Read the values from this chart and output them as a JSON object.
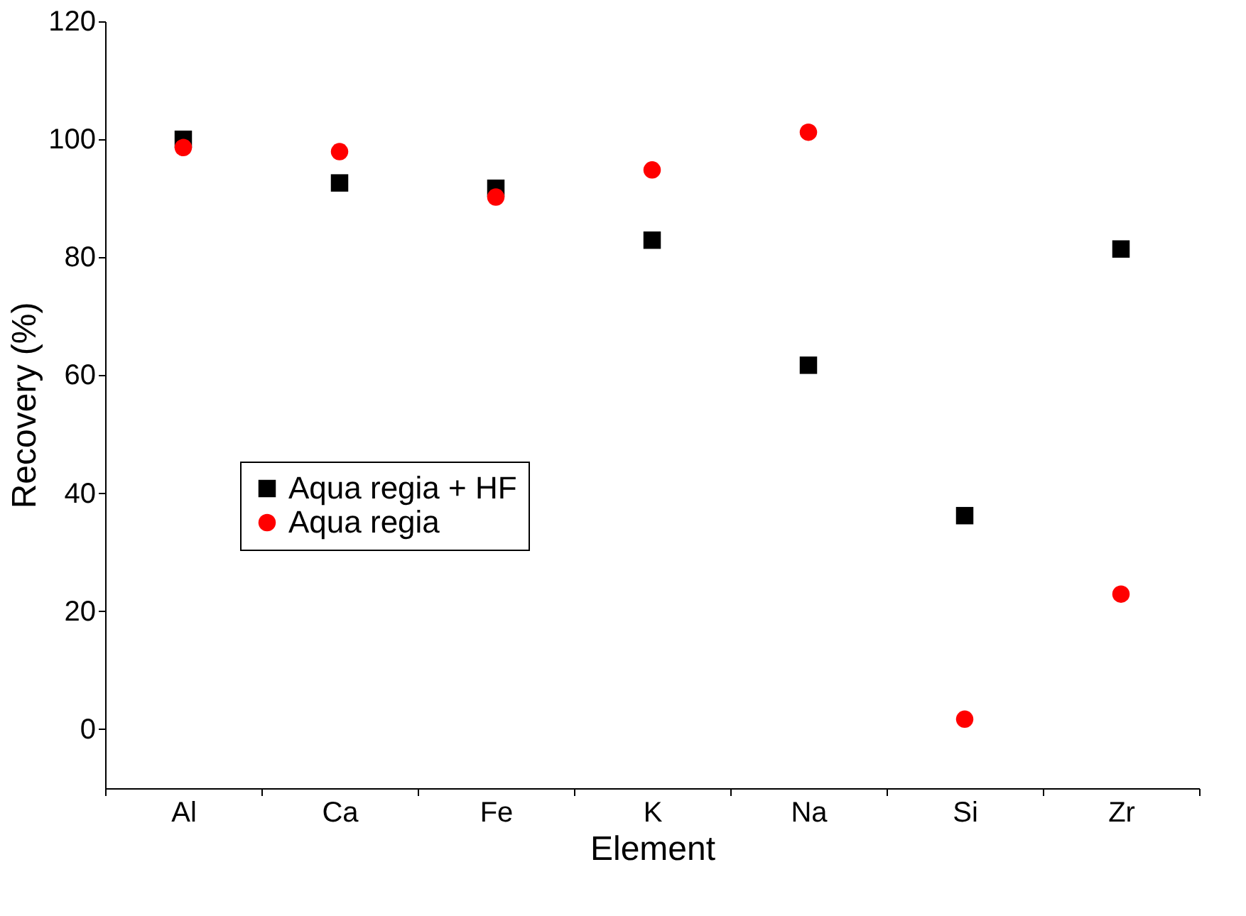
{
  "chart_data": {
    "type": "scatter",
    "xlabel": "Element",
    "ylabel": "Recovery (%)",
    "categories": [
      "Al",
      "Ca",
      "Fe",
      "K",
      "Na",
      "Si",
      "Zr"
    ],
    "series": [
      {
        "name": "Aqua regia + HF",
        "color": "#000000",
        "marker": "square",
        "values": [
          100,
          92.6,
          91.7,
          82.9,
          61.7,
          36.2,
          81.4
        ]
      },
      {
        "name": "Aqua regia",
        "color": "#ff0000",
        "marker": "circle",
        "values": [
          98.6,
          97.9,
          90.2,
          94.8,
          101.2,
          1.7,
          22.9
        ]
      }
    ],
    "ylim": [
      -10,
      120
    ],
    "yticks": [
      0,
      20,
      40,
      60,
      80,
      100,
      120
    ],
    "grid": false,
    "legend": "left"
  }
}
